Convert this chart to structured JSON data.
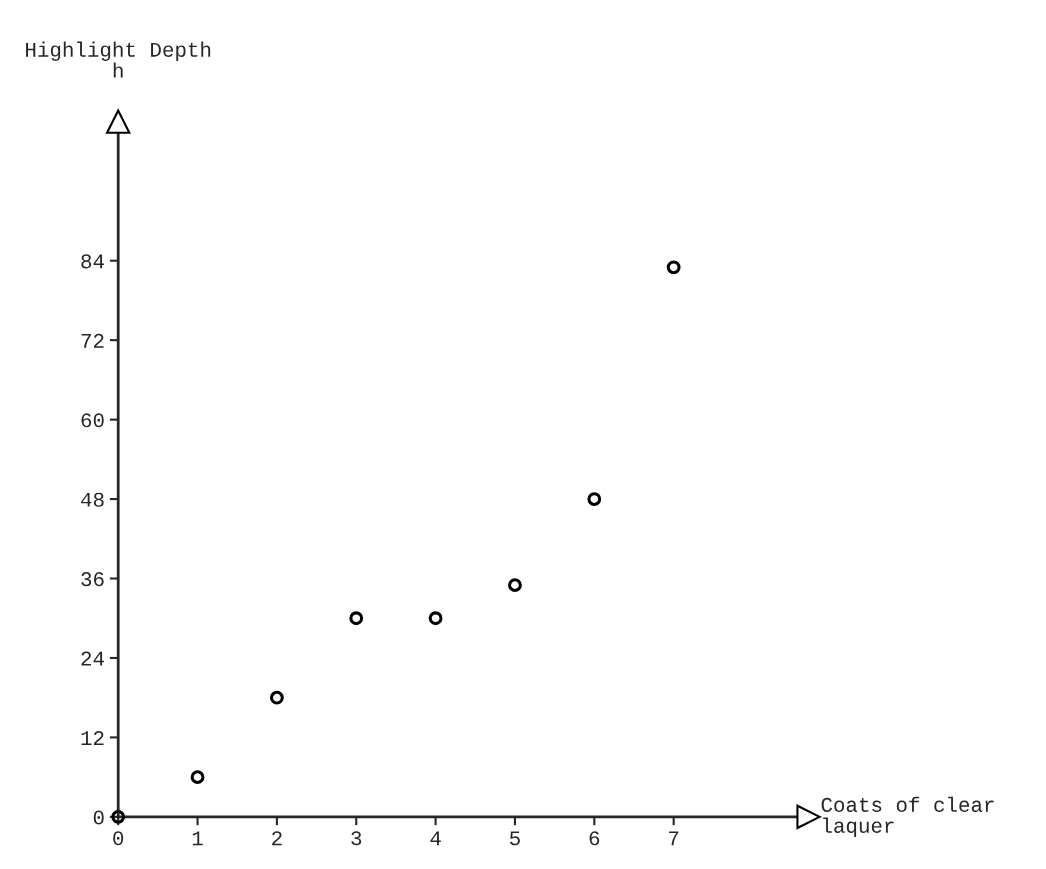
{
  "chart_data": {
    "type": "scatter",
    "xlabel": "Coats of clear\nlaquer",
    "ylabel": "Highlight Depth\nh",
    "x": [
      0,
      1,
      2,
      3,
      4,
      5,
      6,
      7
    ],
    "series": [
      {
        "color": "#000000",
        "values": [
          0,
          6,
          18,
          30,
          30,
          35,
          48,
          83
        ]
      }
    ],
    "xlim": [
      0,
      8.7
    ],
    "ylim": [
      0,
      105
    ],
    "xticks": [
      0,
      1,
      2,
      3,
      4,
      5,
      6,
      7
    ],
    "yticks": [
      0,
      12,
      24,
      36,
      48,
      60,
      72,
      84
    ],
    "marker": "circle",
    "grid": false
  }
}
